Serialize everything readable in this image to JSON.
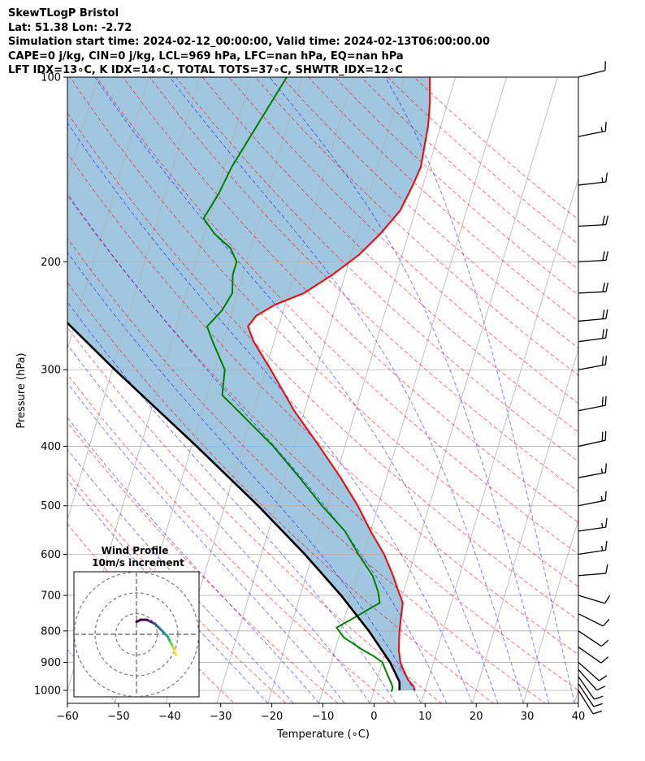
{
  "header": {
    "line1": "SkewTLogP Bristol",
    "line2": "Lat: 51.38   Lon: -2.72",
    "line3": "Simulation start time: 2024-02-12_00:00:00, Valid time: 2024-02-13T06:00:00.00",
    "line4": "CAPE=0 j/kg, CIN=0 j/kg, LCL=969 hPa, LFC=nan hPa, EQ=nan hPa",
    "line5": "LFT IDX=13∘C, K IDX=14∘C, TOTAL TOTS=37∘C, SHWTR_IDX=12∘C"
  },
  "chart_data": {
    "type": "line",
    "subtype": "skew-t log-p",
    "xlabel": "Temperature (∘C)",
    "ylabel": "Pressure (hPa)",
    "xlim": [
      -60,
      40
    ],
    "ylim": [
      1050,
      100
    ],
    "y_scale": "log",
    "x_ticks": [
      "−60",
      "−50",
      "−40",
      "−30",
      "−20",
      "−10",
      "0",
      "10",
      "20",
      "30",
      "40"
    ],
    "y_ticks": [
      100,
      200,
      300,
      400,
      500,
      600,
      700,
      800,
      900,
      1000
    ],
    "grid": true,
    "series": [
      {
        "role": "temperature",
        "color": "#ff0000",
        "p": [
          1000,
          985,
          960,
          925,
          900,
          860,
          830,
          800,
          760,
          720,
          690,
          650,
          600,
          550,
          500,
          450,
          400,
          350,
          300,
          270,
          255,
          245,
          235,
          225,
          210,
          195,
          180,
          165,
          150,
          140,
          130,
          120,
          110,
          100
        ],
        "t": [
          8,
          7.5,
          6,
          4.5,
          3.5,
          2.5,
          2,
          1.5,
          1,
          0.5,
          -1,
          -3,
          -6,
          -10,
          -14,
          -19,
          -25,
          -32,
          -39,
          -44,
          -46,
          -45,
          -42,
          -37,
          -32.5,
          -28.5,
          -25.5,
          -23,
          -22,
          -21.5,
          -22,
          -22.5,
          -23.5,
          -25
        ]
      },
      {
        "role": "dewpoint",
        "color": "#008000",
        "p": [
          1005,
          990,
          975,
          950,
          925,
          900,
          880,
          860,
          820,
          790,
          760,
          720,
          690,
          650,
          600,
          550,
          500,
          450,
          400,
          350,
          330,
          300,
          270,
          255,
          240,
          225,
          210,
          200,
          190,
          180,
          170,
          155,
          140,
          120,
          100
        ],
        "t": [
          3.5,
          3.5,
          3,
          2,
          1,
          0,
          -2,
          -4.5,
          -9,
          -11,
          -8,
          -4,
          -5,
          -7,
          -11,
          -15,
          -21,
          -27,
          -34,
          -43,
          -47,
          -48,
          -52,
          -54,
          -52,
          -51,
          -52,
          -52,
          -54,
          -58,
          -61,
          -59.5,
          -58.5,
          -56,
          -53
        ]
      },
      {
        "role": "parcel",
        "color": "#000000",
        "p": [
          1000,
          969,
          900,
          800,
          700,
          600,
          500,
          400,
          300,
          250,
          200,
          150,
          100
        ],
        "t": [
          5,
          4.5,
          1.5,
          -4.5,
          -12,
          -21.5,
          -33.5,
          -49,
          -69.5,
          -82,
          -96.5,
          -113.5,
          -132.5
        ]
      }
    ],
    "shading": "area between parcel and temperature",
    "wind_barbs_kt": [
      {
        "p": 1000,
        "u": -5,
        "v": 8
      },
      {
        "p": 975,
        "u": -6,
        "v": 9
      },
      {
        "p": 950,
        "u": -7,
        "v": 10
      },
      {
        "p": 925,
        "u": -8,
        "v": 9
      },
      {
        "p": 900,
        "u": -9,
        "v": 8
      },
      {
        "p": 850,
        "u": -10,
        "v": 7
      },
      {
        "p": 800,
        "u": -9,
        "v": 6
      },
      {
        "p": 750,
        "u": -8,
        "v": 4
      },
      {
        "p": 700,
        "u": -10,
        "v": 3
      },
      {
        "p": 650,
        "u": -12,
        "v": -1
      },
      {
        "p": 600,
        "u": -13,
        "v": -2
      },
      {
        "p": 550,
        "u": -14,
        "v": -2
      },
      {
        "p": 500,
        "u": -15,
        "v": -3
      },
      {
        "p": 450,
        "u": -16,
        "v": -3
      },
      {
        "p": 400,
        "u": -18,
        "v": -4
      },
      {
        "p": 350,
        "u": -20,
        "v": -4
      },
      {
        "p": 300,
        "u": -22,
        "v": -4
      },
      {
        "p": 270,
        "u": -22,
        "v": -3
      },
      {
        "p": 250,
        "u": -22,
        "v": -2
      },
      {
        "p": 225,
        "u": -20,
        "v": -1
      },
      {
        "p": 200,
        "u": -19,
        "v": -1
      },
      {
        "p": 175,
        "u": -18,
        "v": -1
      },
      {
        "p": 150,
        "u": -17,
        "v": -2
      },
      {
        "p": 125,
        "u": -15,
        "v": -3
      },
      {
        "p": 100,
        "u": -12,
        "v": -3
      }
    ],
    "hodograph": {
      "title": "Wind Profile",
      "subtitle": "10m/s increment",
      "ring_spacing_ms": 10,
      "u": [
        19,
        18,
        17,
        16,
        15,
        13,
        11,
        9,
        7,
        5,
        2,
        0
      ],
      "v": [
        -10,
        -7,
        -5,
        -3,
        -1,
        1,
        3,
        5,
        6,
        7,
        7,
        6
      ]
    }
  }
}
